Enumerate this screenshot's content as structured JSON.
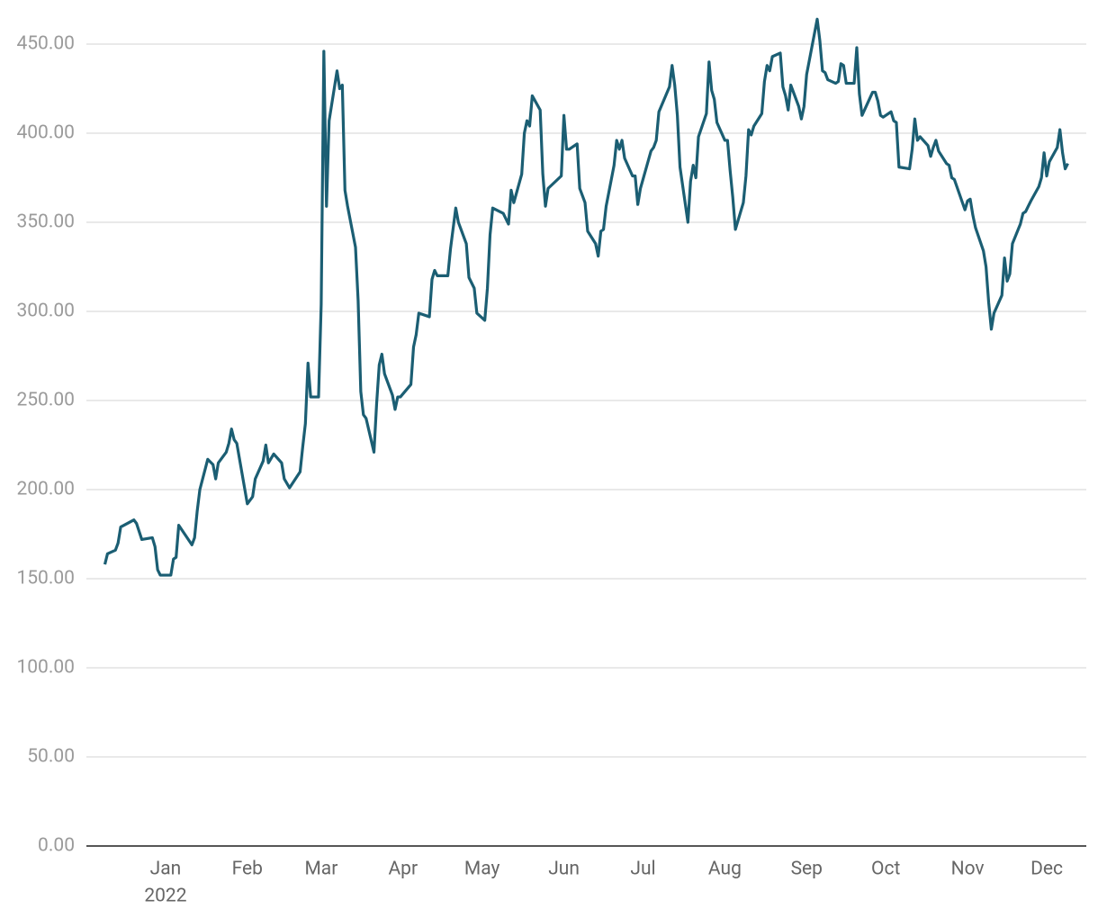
{
  "chart_data": {
    "type": "line",
    "x": [
      "2021-12-09",
      "2021-12-10",
      "2021-12-13",
      "2021-12-14",
      "2021-12-15",
      "2021-12-20",
      "2021-12-21",
      "2021-12-23",
      "2021-12-27",
      "2021-12-28",
      "2021-12-29",
      "2021-12-30",
      "2022-01-03",
      "2022-01-04",
      "2022-01-05",
      "2022-01-06",
      "2022-01-11",
      "2022-01-12",
      "2022-01-13",
      "2022-01-14",
      "2022-01-17",
      "2022-01-19",
      "2022-01-20",
      "2022-01-21",
      "2022-01-24",
      "2022-01-25",
      "2022-01-26",
      "2022-01-27",
      "2022-01-28",
      "2022-02-01",
      "2022-02-03",
      "2022-02-04",
      "2022-02-07",
      "2022-02-08",
      "2022-02-09",
      "2022-02-11",
      "2022-02-14",
      "2022-02-15",
      "2022-02-17",
      "2022-02-21",
      "2022-02-22",
      "2022-02-23",
      "2022-02-24",
      "2022-02-25",
      "2022-02-28",
      "2022-03-01",
      "2022-03-02",
      "2022-03-03",
      "2022-03-04",
      "2022-03-07",
      "2022-03-08",
      "2022-03-09",
      "2022-03-10",
      "2022-03-11",
      "2022-03-14",
      "2022-03-15",
      "2022-03-16",
      "2022-03-17",
      "2022-03-18",
      "2022-03-21",
      "2022-03-22",
      "2022-03-23",
      "2022-03-24",
      "2022-03-25",
      "2022-03-28",
      "2022-03-29",
      "2022-03-30",
      "2022-03-31",
      "2022-04-04",
      "2022-04-05",
      "2022-04-06",
      "2022-04-07",
      "2022-04-11",
      "2022-04-12",
      "2022-04-13",
      "2022-04-14",
      "2022-04-18",
      "2022-04-19",
      "2022-04-21",
      "2022-04-22",
      "2022-04-25",
      "2022-04-26",
      "2022-04-28",
      "2022-04-29",
      "2022-05-02",
      "2022-05-03",
      "2022-05-04",
      "2022-05-05",
      "2022-05-09",
      "2022-05-10",
      "2022-05-11",
      "2022-05-12",
      "2022-05-13",
      "2022-05-16",
      "2022-05-17",
      "2022-05-18",
      "2022-05-19",
      "2022-05-20",
      "2022-05-23",
      "2022-05-24",
      "2022-05-25",
      "2022-05-26",
      "2022-05-31",
      "2022-06-01",
      "2022-06-02",
      "2022-06-03",
      "2022-06-06",
      "2022-06-07",
      "2022-06-09",
      "2022-06-10",
      "2022-06-13",
      "2022-06-14",
      "2022-06-15",
      "2022-06-16",
      "2022-06-17",
      "2022-06-20",
      "2022-06-21",
      "2022-06-22",
      "2022-06-23",
      "2022-06-24",
      "2022-06-27",
      "2022-06-28",
      "2022-06-29",
      "2022-06-30",
      "2022-07-04",
      "2022-07-05",
      "2022-07-06",
      "2022-07-07",
      "2022-07-11",
      "2022-07-12",
      "2022-07-13",
      "2022-07-14",
      "2022-07-15",
      "2022-07-18",
      "2022-07-19",
      "2022-07-20",
      "2022-07-21",
      "2022-07-22",
      "2022-07-25",
      "2022-07-26",
      "2022-07-27",
      "2022-07-28",
      "2022-07-29",
      "2022-08-01",
      "2022-08-02",
      "2022-08-03",
      "2022-08-04",
      "2022-08-05",
      "2022-08-08",
      "2022-08-09",
      "2022-08-10",
      "2022-08-11",
      "2022-08-12",
      "2022-08-15",
      "2022-08-16",
      "2022-08-17",
      "2022-08-18",
      "2022-08-19",
      "2022-08-22",
      "2022-08-23",
      "2022-08-24",
      "2022-08-25",
      "2022-08-26",
      "2022-08-29",
      "2022-08-30",
      "2022-08-31",
      "2022-09-01",
      "2022-09-05",
      "2022-09-06",
      "2022-09-07",
      "2022-09-08",
      "2022-09-09",
      "2022-09-12",
      "2022-09-13",
      "2022-09-14",
      "2022-09-15",
      "2022-09-16",
      "2022-09-19",
      "2022-09-20",
      "2022-09-21",
      "2022-09-22",
      "2022-09-26",
      "2022-09-27",
      "2022-09-28",
      "2022-09-29",
      "2022-09-30",
      "2022-10-03",
      "2022-10-04",
      "2022-10-05",
      "2022-10-06",
      "2022-10-10",
      "2022-10-11",
      "2022-10-12",
      "2022-10-13",
      "2022-10-14",
      "2022-10-17",
      "2022-10-18",
      "2022-10-19",
      "2022-10-20",
      "2022-10-21",
      "2022-10-24",
      "2022-10-25",
      "2022-10-26",
      "2022-10-27",
      "2022-10-31",
      "2022-11-01",
      "2022-11-02",
      "2022-11-03",
      "2022-11-04",
      "2022-11-07",
      "2022-11-08",
      "2022-11-09",
      "2022-11-10",
      "2022-11-11",
      "2022-11-14",
      "2022-11-15",
      "2022-11-16",
      "2022-11-17",
      "2022-11-18",
      "2022-11-21",
      "2022-11-22",
      "2022-11-23",
      "2022-11-25",
      "2022-11-28",
      "2022-11-29",
      "2022-11-30",
      "2022-12-01",
      "2022-12-02",
      "2022-12-05",
      "2022-12-06",
      "2022-12-07",
      "2022-12-08",
      "2022-12-09"
    ],
    "values": [
      158,
      164,
      166,
      170,
      179,
      183,
      181,
      172,
      173,
      168,
      155,
      152,
      152,
      161,
      162,
      180,
      169,
      173,
      188,
      200,
      217,
      214,
      206,
      215,
      221,
      226,
      234,
      228,
      226,
      192,
      196,
      206,
      216,
      225,
      215,
      220,
      215,
      206,
      201,
      210,
      224,
      237,
      271,
      252,
      252,
      304,
      446,
      359,
      407,
      435,
      425,
      427,
      368,
      359,
      336,
      306,
      255,
      242,
      240,
      221,
      248,
      270,
      276,
      265,
      253,
      245,
      252,
      252,
      259,
      280,
      287,
      299,
      297,
      318,
      323,
      320,
      320,
      335,
      358,
      350,
      338,
      319,
      313,
      299,
      295,
      313,
      343,
      358,
      355,
      352,
      349,
      368,
      361,
      377,
      400,
      407,
      404,
      421,
      413,
      377,
      359,
      369,
      376,
      410,
      391,
      391,
      394,
      369,
      361,
      345,
      338,
      331,
      345,
      346,
      359,
      382,
      396,
      391,
      396,
      386,
      376,
      376,
      360,
      369,
      390,
      392,
      396,
      412,
      426,
      438,
      427,
      410,
      381,
      350,
      373,
      382,
      375,
      398,
      411,
      440,
      424,
      419,
      406,
      396,
      396,
      379,
      364,
      346,
      361,
      376,
      402,
      399,
      404,
      411,
      429,
      438,
      435,
      443,
      445,
      426,
      421,
      413,
      427,
      415,
      408,
      415,
      433,
      464,
      452,
      435,
      434,
      430,
      428,
      429,
      439,
      438,
      428,
      428,
      448,
      422,
      410,
      423,
      423,
      418,
      410,
      409,
      412,
      407,
      406,
      381,
      380,
      391,
      408,
      396,
      398,
      393,
      387,
      392,
      396,
      390,
      383,
      382,
      375,
      374,
      357,
      362,
      363,
      354,
      347,
      334,
      325,
      305,
      290,
      299,
      309,
      330,
      317,
      321,
      338,
      349,
      355,
      356,
      362,
      370,
      375,
      389,
      376,
      384,
      392,
      402,
      389,
      380,
      383
    ],
    "color": "#1b5e73",
    "xlim": [
      "2021-12-02",
      "2022-12-16"
    ],
    "xticks": [
      {
        "value": "2022-01-01",
        "label": "Jan"
      },
      {
        "value": "2022-02-01",
        "label": "Feb"
      },
      {
        "value": "2022-03-01",
        "label": "Mar"
      },
      {
        "value": "2022-04-01",
        "label": "Apr"
      },
      {
        "value": "2022-05-01",
        "label": "May"
      },
      {
        "value": "2022-06-01",
        "label": "Jun"
      },
      {
        "value": "2022-07-01",
        "label": "Jul"
      },
      {
        "value": "2022-08-01",
        "label": "Aug"
      },
      {
        "value": "2022-09-01",
        "label": "Sep"
      },
      {
        "value": "2022-10-01",
        "label": "Oct"
      },
      {
        "value": "2022-11-01",
        "label": "Nov"
      },
      {
        "value": "2022-12-01",
        "label": "Dec"
      }
    ],
    "xtick_year": "2022",
    "ylim": [
      0,
      450
    ],
    "yticks": [
      {
        "value": 0,
        "label": "0.00"
      },
      {
        "value": 50,
        "label": "50.00"
      },
      {
        "value": 100,
        "label": "100.00"
      },
      {
        "value": 150,
        "label": "150.00"
      },
      {
        "value": 200,
        "label": "200.00"
      },
      {
        "value": 250,
        "label": "250.00"
      },
      {
        "value": 300,
        "label": "300.00"
      },
      {
        "value": 350,
        "label": "350.00"
      },
      {
        "value": 400,
        "label": "400.00"
      },
      {
        "value": 450,
        "label": "450.00"
      }
    ],
    "grid": true
  }
}
